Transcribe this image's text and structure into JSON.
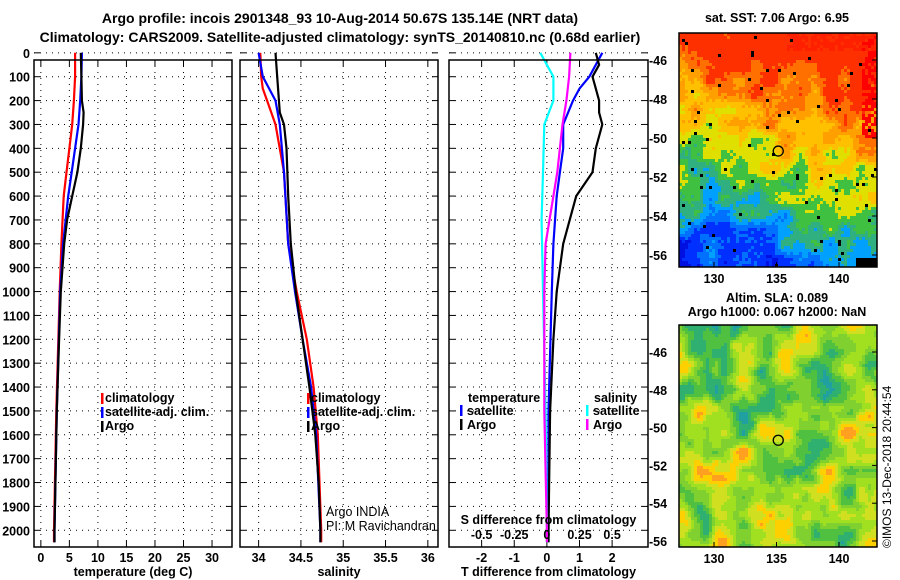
{
  "header": {
    "title_line1": "Argo profile: incois 2901348_93 10-Aug-2014 50.67S 135.14E (NRT data)",
    "title_line2": "Climatology: CARS2009. Satellite-adjusted climatology: synTS_20140810.nc (0.68d earlier)"
  },
  "depth_ticks": [
    0,
    100,
    200,
    300,
    400,
    500,
    600,
    700,
    800,
    900,
    1000,
    1100,
    1200,
    1300,
    1400,
    1500,
    1600,
    1700,
    1800,
    1900,
    2000
  ],
  "chart_data": [
    {
      "type": "line",
      "name": "temperature-profile",
      "xlabel": "temperature (deg C)",
      "ylabel": "depth",
      "xlim": [
        -1.2,
        33.5
      ],
      "ylim": [
        2070,
        30
      ],
      "xticks": [
        0,
        5,
        10,
        15,
        20,
        25,
        30
      ],
      "grid": true,
      "legend": [
        "climatology",
        "satellite-adj. clim.",
        "Argo"
      ],
      "series": [
        {
          "name": "climatology",
          "color": "#ff0000",
          "depth": [
            0,
            100,
            200,
            300,
            400,
            500,
            600,
            800,
            1000,
            1500,
            2000,
            2050
          ],
          "values": [
            6.0,
            6.0,
            5.8,
            5.5,
            5.0,
            4.5,
            4.0,
            3.6,
            3.3,
            2.7,
            2.3,
            2.3
          ]
        },
        {
          "name": "satellite-adj. clim.",
          "color": "#0000ff",
          "depth": [
            0,
            100,
            200,
            300,
            400,
            500,
            600,
            800,
            1000,
            1500,
            2000,
            2050
          ],
          "values": [
            7.2,
            7.1,
            6.9,
            6.6,
            6.0,
            5.4,
            4.8,
            3.9,
            3.4,
            2.8,
            2.4,
            2.4
          ]
        },
        {
          "name": "Argo",
          "color": "#000000",
          "depth": [
            0,
            100,
            200,
            250,
            300,
            400,
            500,
            600,
            700,
            800,
            1000,
            1200,
            1500,
            2000,
            2050
          ],
          "values": [
            7.0,
            7.1,
            7.2,
            7.5,
            7.4,
            7.0,
            6.4,
            5.5,
            4.6,
            4.1,
            3.5,
            3.2,
            2.8,
            2.4,
            2.4
          ]
        }
      ]
    },
    {
      "type": "line",
      "name": "salinity-profile",
      "xlabel": "salinity",
      "xlim": [
        33.78,
        36.12
      ],
      "ylim": [
        2070,
        30
      ],
      "xticks": [
        34,
        34.5,
        35,
        35.5,
        36
      ],
      "grid": true,
      "legend": [
        "climatology",
        "satellite-adj. clim.",
        "Argo"
      ],
      "annotation": [
        "Argo INDIA",
        "PI: M Ravichandran"
      ],
      "series": [
        {
          "name": "climatology",
          "color": "#ff0000",
          "depth": [
            0,
            100,
            150,
            200,
            300,
            500,
            800,
            1000,
            1200,
            1400,
            1600,
            2000,
            2050
          ],
          "values": [
            34.02,
            34.03,
            34.05,
            34.1,
            34.2,
            34.3,
            34.35,
            34.45,
            34.57,
            34.65,
            34.7,
            34.74,
            34.74
          ]
        },
        {
          "name": "satellite-adj. clim.",
          "color": "#0000ff",
          "depth": [
            0,
            100,
            200,
            300,
            500,
            800,
            1000,
            1200,
            1400,
            1600,
            2000,
            2050
          ],
          "values": [
            34.0,
            34.05,
            34.2,
            34.25,
            34.3,
            34.35,
            34.43,
            34.52,
            34.62,
            34.68,
            34.73,
            34.73
          ]
        },
        {
          "name": "Argo",
          "color": "#000000",
          "depth": [
            0,
            100,
            250,
            300,
            400,
            600,
            800,
            1000,
            1200,
            1400,
            1600,
            1800,
            2000,
            2050
          ],
          "values": [
            34.2,
            34.22,
            34.25,
            34.3,
            34.33,
            34.35,
            34.38,
            34.44,
            34.52,
            34.6,
            34.67,
            34.71,
            34.73,
            34.73
          ]
        }
      ]
    },
    {
      "type": "line",
      "name": "difference-profile",
      "xlabel": "T difference from climatology",
      "secondary_xlabel": "S difference from climatology",
      "xlim": [
        -3.0,
        3.1
      ],
      "ylim": [
        2070,
        30
      ],
      "xticks": [
        -2,
        -1,
        0,
        1,
        2
      ],
      "secondary_xticks": [
        -0.5,
        -0.25,
        0,
        0.25,
        0.5
      ],
      "grid": true,
      "legend_temperature": {
        "title": "temperature",
        "items": [
          "satellite",
          "Argo"
        ]
      },
      "legend_salinity": {
        "title": "salinity",
        "items": [
          "satellite",
          "Argo"
        ]
      },
      "series": [
        {
          "name": "temperature satellite",
          "axis": "T",
          "color": "#0000ff",
          "depth": [
            0,
            50,
            100,
            150,
            200,
            300,
            400,
            500,
            600,
            800,
            1000,
            1500,
            2000,
            2050
          ],
          "values": [
            1.7,
            1.5,
            1.3,
            1.0,
            0.8,
            0.5,
            0.5,
            0.4,
            0.3,
            0.2,
            0.15,
            0.05,
            0.05,
            0.05
          ]
        },
        {
          "name": "temperature Argo",
          "axis": "T",
          "color": "#000000",
          "depth": [
            0,
            50,
            100,
            150,
            200,
            250,
            300,
            400,
            500,
            600,
            700,
            800,
            1000,
            1200,
            1500,
            2000,
            2050
          ],
          "values": [
            1.5,
            1.6,
            1.4,
            1.5,
            1.6,
            1.6,
            1.7,
            1.5,
            1.4,
            0.9,
            0.7,
            0.5,
            0.3,
            0.2,
            0.1,
            0.05,
            0.05
          ]
        },
        {
          "name": "salinity satellite",
          "axis": "S",
          "color": "#00ffff",
          "depth": [
            0,
            100,
            200,
            300,
            500,
            700,
            1000,
            1500,
            2000,
            2050
          ],
          "values": [
            -0.05,
            0.05,
            0.05,
            -0.02,
            -0.03,
            -0.04,
            -0.03,
            -0.01,
            0.0,
            0.0
          ]
        },
        {
          "name": "salinity Argo",
          "axis": "S",
          "color": "#ff00ff",
          "depth": [
            0,
            100,
            200,
            300,
            400,
            500,
            700,
            800,
            1000,
            1500,
            2000,
            2050
          ],
          "values": [
            0.18,
            0.17,
            0.15,
            0.12,
            0.1,
            0.08,
            0.02,
            -0.01,
            -0.02,
            -0.02,
            0.0,
            0.0
          ]
        }
      ]
    }
  ],
  "sst_map": {
    "title": "sat. SST: 7.06 Argo: 6.95",
    "lon_ticks": [
      130,
      135,
      140
    ],
    "lat_ticks": [
      -46,
      -48,
      -50,
      -52,
      -54,
      -56
    ],
    "float_lon": 135.14,
    "float_lat": -50.67
  },
  "sla_map": {
    "title_line1": "Altim. SLA: 0.089",
    "title_line2": "Argo h1000: 0.067 h2000: NaN",
    "lon_ticks": [
      130,
      135,
      140
    ],
    "lat_ticks": [
      -46,
      -48,
      -50,
      -52,
      -54,
      -56
    ],
    "float_lon": 135.14,
    "float_lat": -50.67
  },
  "footer": {
    "credit": "©IMOS 13-Dec-2018 20:44:54"
  }
}
